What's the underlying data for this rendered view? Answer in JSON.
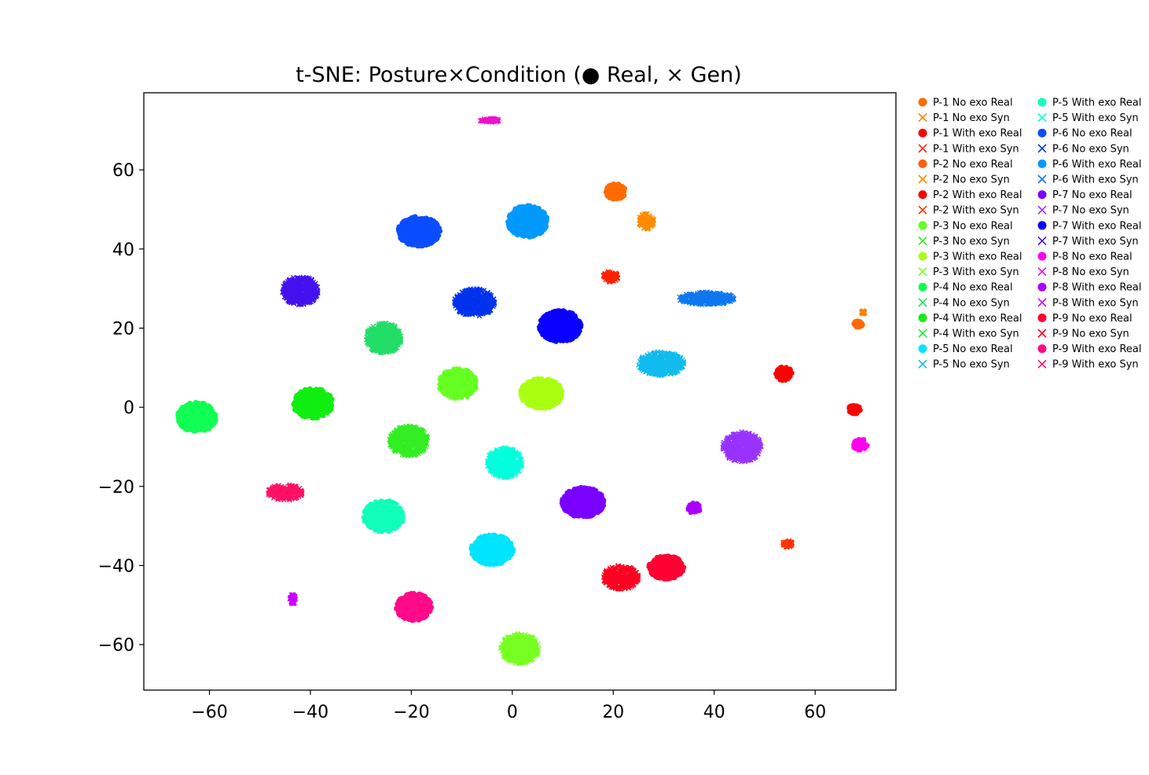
{
  "chart_data": {
    "type": "scatter",
    "title": "t-SNE: Posture×Condition (● Real, × Gen)",
    "xlabel": "",
    "ylabel": "",
    "xlim": [
      -73,
      76
    ],
    "ylim": [
      -71.5,
      79.5
    ],
    "xticks": [
      -60,
      -40,
      -20,
      0,
      20,
      40,
      60
    ],
    "yticks": [
      -60,
      -40,
      -20,
      0,
      20,
      40,
      60
    ],
    "xtick_labels": [
      "−60",
      "−40",
      "−20",
      "0",
      "20",
      "40",
      "60"
    ],
    "ytick_labels": [
      "−60",
      "−40",
      "−20",
      "0",
      "20",
      "40",
      "60"
    ],
    "grid": false,
    "legend_position": "outside-right",
    "marker_legend": {
      "Real": "circle",
      "Syn": "x"
    },
    "series": [
      {
        "name": "P-1 No exo Real",
        "marker": "circle",
        "color": "#ff6a00",
        "clusters": [
          {
            "x": 20.5,
            "y": 54.5,
            "rx": 2.0,
            "ry": 2.0
          },
          {
            "x": 68.5,
            "y": 21.0,
            "rx": 0.9,
            "ry": 0.8
          }
        ]
      },
      {
        "name": "P-1 No exo Syn",
        "marker": "x",
        "color": "#ff8000",
        "clusters": [
          {
            "x": 69.5,
            "y": 24.0,
            "rx": 0.3,
            "ry": 0.4
          }
        ]
      },
      {
        "name": "P-1 With exo Real",
        "marker": "circle",
        "color": "#ff0000",
        "clusters": [
          {
            "x": 53.8,
            "y": 8.5,
            "rx": 1.6,
            "ry": 1.8
          }
        ]
      },
      {
        "name": "P-1 With exo Syn",
        "marker": "x",
        "color": "#ff2200",
        "clusters": [
          {
            "x": 19.5,
            "y": 33.0,
            "rx": 1.5,
            "ry": 1.5
          }
        ]
      },
      {
        "name": "P-2 No exo Real",
        "marker": "circle",
        "color": "#ff5e00",
        "clusters": []
      },
      {
        "name": "P-2 No exo Syn",
        "marker": "x",
        "color": "#ff8a00",
        "clusters": [
          {
            "x": 26.5,
            "y": 47.0,
            "rx": 1.6,
            "ry": 2.0
          }
        ]
      },
      {
        "name": "P-2 With exo Real",
        "marker": "circle",
        "color": "#ff0000",
        "clusters": [
          {
            "x": 67.8,
            "y": -0.5,
            "rx": 1.2,
            "ry": 1.2
          }
        ]
      },
      {
        "name": "P-2 With exo Syn",
        "marker": "x",
        "color": "#ff3300",
        "clusters": [
          {
            "x": 54.5,
            "y": -34.5,
            "rx": 1.0,
            "ry": 0.9
          }
        ]
      },
      {
        "name": "P-3 No exo Real",
        "marker": "circle",
        "color": "#66ff22",
        "clusters": [
          {
            "x": -10.8,
            "y": 6.0,
            "rx": 3.8,
            "ry": 3.8
          }
        ]
      },
      {
        "name": "P-3 No exo Syn",
        "marker": "x",
        "color": "#33ee22",
        "clusters": [
          {
            "x": -20.5,
            "y": -8.5,
            "rx": 3.8,
            "ry": 3.8
          }
        ]
      },
      {
        "name": "P-3 With exo Real",
        "marker": "circle",
        "color": "#aaff11",
        "clusters": [
          {
            "x": 5.8,
            "y": 3.5,
            "rx": 4.2,
            "ry": 3.8
          }
        ]
      },
      {
        "name": "P-3 With exo Syn",
        "marker": "x",
        "color": "#77ff22",
        "clusters": [
          {
            "x": 1.5,
            "y": -61.0,
            "rx": 3.8,
            "ry": 3.8
          }
        ]
      },
      {
        "name": "P-4 No exo Real",
        "marker": "circle",
        "color": "#11ff55",
        "clusters": [
          {
            "x": -62.5,
            "y": -2.5,
            "rx": 3.8,
            "ry": 3.8
          }
        ]
      },
      {
        "name": "P-4 No exo Syn",
        "marker": "x",
        "color": "#22dd66",
        "clusters": [
          {
            "x": -25.5,
            "y": 17.5,
            "rx": 3.5,
            "ry": 3.8
          }
        ]
      },
      {
        "name": "P-4 With exo Real",
        "marker": "circle",
        "color": "#11ee11",
        "clusters": [
          {
            "x": -39.5,
            "y": 1.0,
            "rx": 4.0,
            "ry": 3.8
          }
        ]
      },
      {
        "name": "P-4 With exo Syn",
        "marker": "x",
        "color": "#22ee44",
        "clusters": []
      },
      {
        "name": "P-5 No exo Real",
        "marker": "circle",
        "color": "#00e5ff",
        "clusters": [
          {
            "x": -4.0,
            "y": -36.0,
            "rx": 4.2,
            "ry": 3.8
          }
        ]
      },
      {
        "name": "P-5 No exo Syn",
        "marker": "x",
        "color": "#11bbee",
        "clusters": [
          {
            "x": 29.5,
            "y": 11.0,
            "rx": 4.5,
            "ry": 3.0
          }
        ]
      },
      {
        "name": "P-5 With exo Real",
        "marker": "circle",
        "color": "#11ffbb",
        "clusters": [
          {
            "x": -25.5,
            "y": -27.5,
            "rx": 4.0,
            "ry": 4.0
          }
        ]
      },
      {
        "name": "P-5 With exo Syn",
        "marker": "x",
        "color": "#00ffdd",
        "clusters": [
          {
            "x": -1.5,
            "y": -14.0,
            "rx": 3.5,
            "ry": 3.8
          }
        ]
      },
      {
        "name": "P-6 No exo Real",
        "marker": "circle",
        "color": "#0a4dff",
        "clusters": [
          {
            "x": -18.5,
            "y": 44.5,
            "rx": 4.2,
            "ry": 3.8
          }
        ]
      },
      {
        "name": "P-6 No exo Syn",
        "marker": "x",
        "color": "#0033ee",
        "clusters": [
          {
            "x": -7.5,
            "y": 26.5,
            "rx": 4.0,
            "ry": 3.5
          }
        ]
      },
      {
        "name": "P-6 With exo Real",
        "marker": "circle",
        "color": "#0099ff",
        "clusters": [
          {
            "x": 3.0,
            "y": 47.0,
            "rx": 4.0,
            "ry": 4.0
          }
        ]
      },
      {
        "name": "P-6 With exo Syn",
        "marker": "x",
        "color": "#0f77ee",
        "clusters": [
          {
            "x": 38.5,
            "y": 27.5,
            "rx": 5.5,
            "ry": 1.6
          }
        ]
      },
      {
        "name": "P-7 No exo Real",
        "marker": "circle",
        "color": "#7a00ff",
        "clusters": [
          {
            "x": 14.0,
            "y": -24.0,
            "rx": 4.2,
            "ry": 3.8
          }
        ]
      },
      {
        "name": "P-7 No exo Syn",
        "marker": "x",
        "color": "#9933ff",
        "clusters": [
          {
            "x": 45.5,
            "y": -10.0,
            "rx": 3.8,
            "ry": 3.8
          }
        ]
      },
      {
        "name": "P-7 With exo Real",
        "marker": "circle",
        "color": "#0a00ff",
        "clusters": [
          {
            "x": 9.5,
            "y": 20.5,
            "rx": 4.2,
            "ry": 4.0
          }
        ]
      },
      {
        "name": "P-7 With exo Syn",
        "marker": "x",
        "color": "#4411ee",
        "clusters": [
          {
            "x": -42.0,
            "y": 29.5,
            "rx": 3.6,
            "ry": 3.6
          }
        ]
      },
      {
        "name": "P-8 No exo Real",
        "marker": "circle",
        "color": "#ff00ee",
        "clusters": [
          {
            "x": 69.0,
            "y": -9.5,
            "rx": 1.5,
            "ry": 1.5
          }
        ]
      },
      {
        "name": "P-8 No exo Syn",
        "marker": "x",
        "color": "#ee11cc",
        "clusters": [
          {
            "x": -4.5,
            "y": 72.5,
            "rx": 2.0,
            "ry": 0.5
          }
        ]
      },
      {
        "name": "P-8 With exo Real",
        "marker": "circle",
        "color": "#aa00ff",
        "clusters": [
          {
            "x": 36.0,
            "y": -25.5,
            "rx": 1.3,
            "ry": 1.3
          }
        ]
      },
      {
        "name": "P-8 With exo Syn",
        "marker": "x",
        "color": "#cc00ff",
        "clusters": [
          {
            "x": -43.5,
            "y": -48.5,
            "rx": 0.6,
            "ry": 1.2
          }
        ]
      },
      {
        "name": "P-9 No exo Real",
        "marker": "circle",
        "color": "#ff0033",
        "clusters": [
          {
            "x": 30.5,
            "y": -40.5,
            "rx": 3.5,
            "ry": 3.0
          }
        ]
      },
      {
        "name": "P-9 No exo Syn",
        "marker": "x",
        "color": "#ff0022",
        "clusters": [
          {
            "x": 21.5,
            "y": -43.0,
            "rx": 3.5,
            "ry": 3.0
          }
        ]
      },
      {
        "name": "P-9 With exo Real",
        "marker": "circle",
        "color": "#ff0a88",
        "clusters": [
          {
            "x": -19.5,
            "y": -50.5,
            "rx": 3.5,
            "ry": 3.5
          }
        ]
      },
      {
        "name": "P-9 With exo Syn",
        "marker": "x",
        "color": "#ff1166",
        "clusters": [
          {
            "x": -45.0,
            "y": -21.5,
            "rx": 3.5,
            "ry": 2.0
          }
        ]
      }
    ]
  }
}
